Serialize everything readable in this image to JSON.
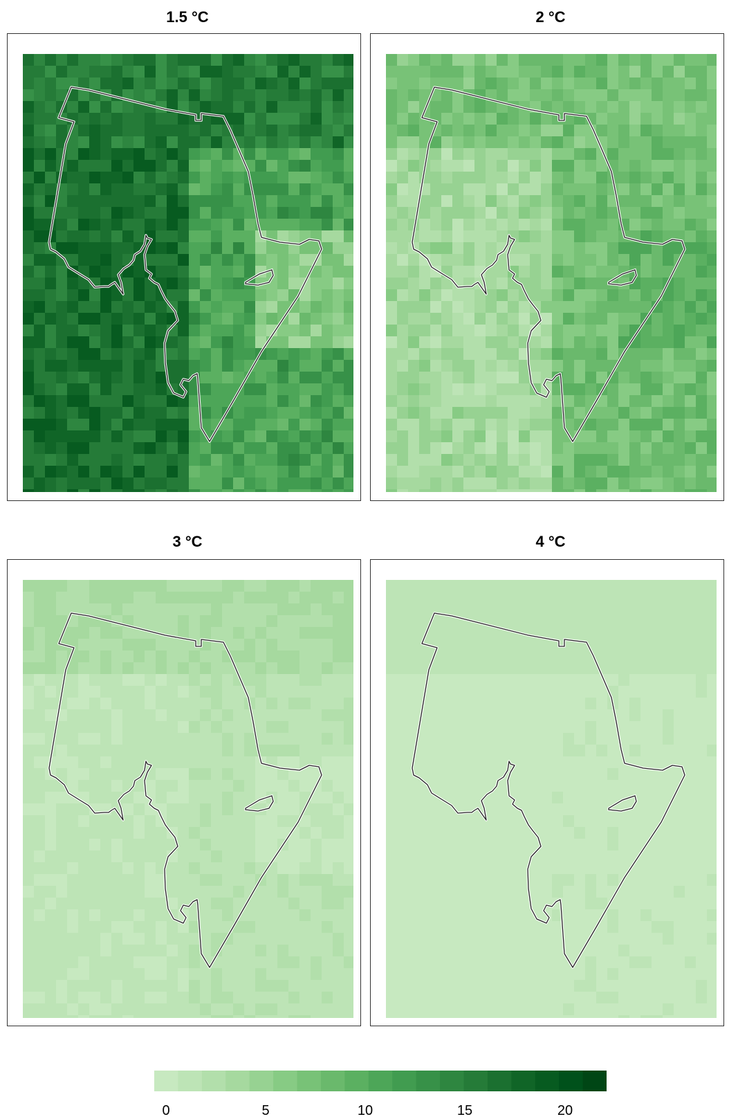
{
  "panels": [
    {
      "title": "1.5 °C",
      "base": [
        15.5,
        17.0,
        11.5,
        6.0
      ],
      "noise": 2.5
    },
    {
      "title": "2 °C",
      "base": [
        7.5,
        4.0,
        8.0,
        9.5
      ],
      "noise": 2.0
    },
    {
      "title": "3 °C",
      "base": [
        3.5,
        1.5,
        2.0,
        0.9
      ],
      "noise": 0.8
    },
    {
      "title": "4 °C",
      "base": [
        1.6,
        0.6,
        0.9,
        0.6
      ],
      "noise": 0.4
    }
  ],
  "legend": {
    "ticks": [
      "0",
      "5",
      "10",
      "15",
      "20"
    ],
    "colors": [
      "#c7e9c0",
      "#bde4b6",
      "#b2dfab",
      "#a6d99f",
      "#97d292",
      "#87cb84",
      "#78c277",
      "#6ab96c",
      "#5bb061",
      "#4da658",
      "#419c50",
      "#379148",
      "#2e8640",
      "#257b38",
      "#1b7030",
      "#106527",
      "#075b20",
      "#00511b",
      "#004615"
    ]
  },
  "boundary_color": "#222222"
}
